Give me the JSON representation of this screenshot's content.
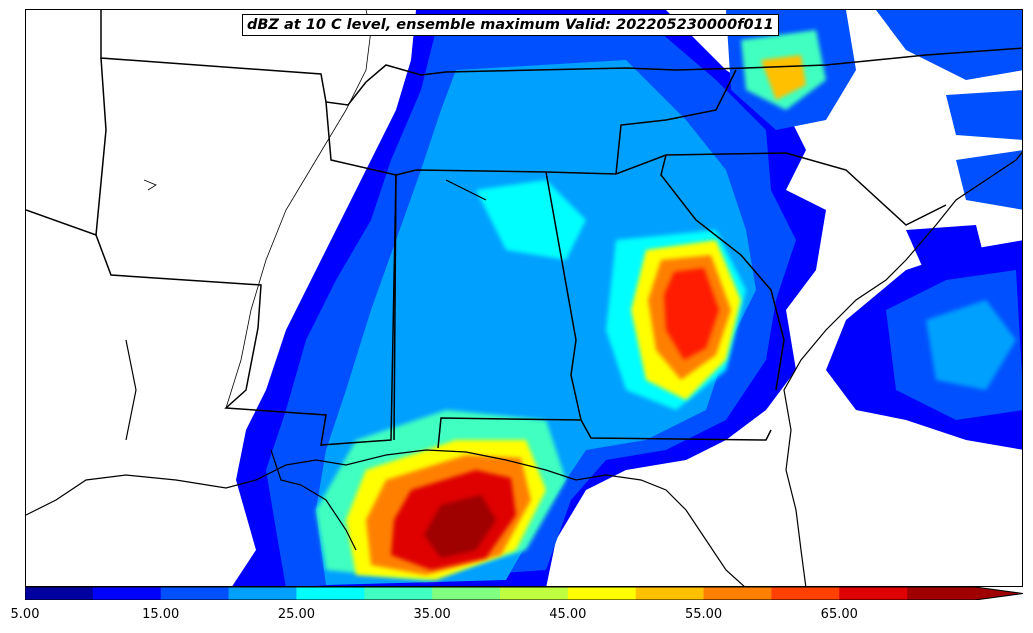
{
  "title": "dBZ at 10 C level, ensemble maximum Valid: 202205230000f011",
  "colorbar": {
    "levels": [
      5,
      10,
      15,
      20,
      25,
      30,
      35,
      40,
      45,
      50,
      55,
      60,
      65,
      70
    ],
    "colors": [
      "#00009f",
      "#0000ff",
      "#0050ff",
      "#00a0ff",
      "#00ffff",
      "#40ffc0",
      "#80ff80",
      "#c0ff40",
      "#ffff00",
      "#ffc000",
      "#ff8000",
      "#ff4000",
      "#df0000",
      "#9f0000"
    ],
    "extend": "max",
    "tick_labels": [
      "5.00",
      "15.00",
      "25.00",
      "35.00",
      "45.00",
      "55.00",
      "65.00"
    ]
  },
  "map": {
    "region": "Southeastern United States and Gulf of Mexico",
    "field": "reflectivity",
    "units": "dBZ"
  }
}
